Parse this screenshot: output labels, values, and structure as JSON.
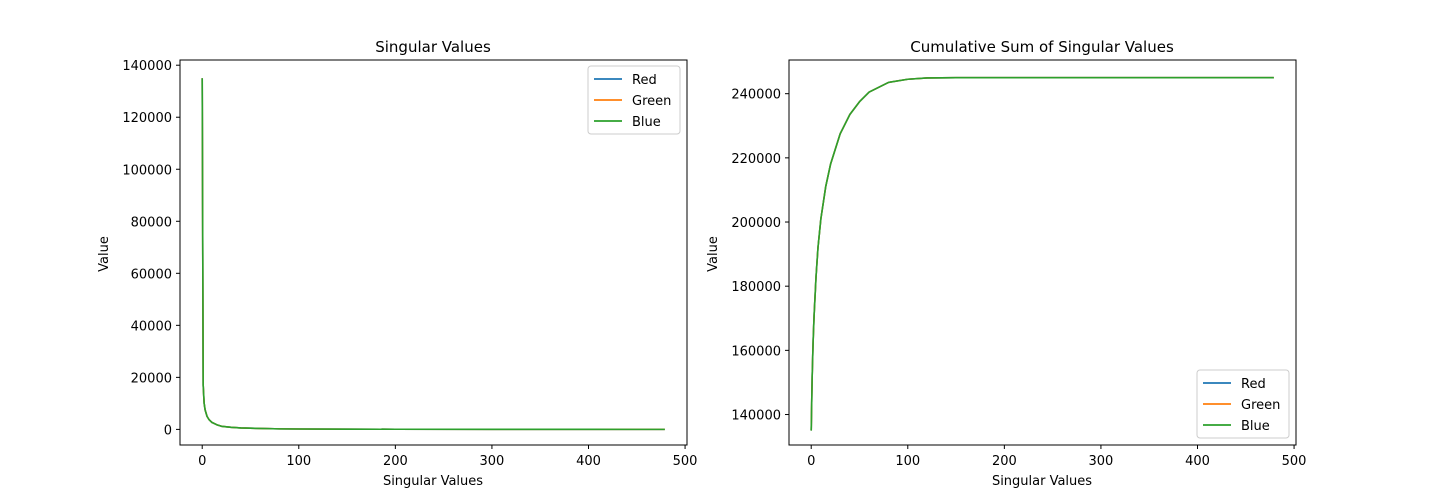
{
  "chart_data": [
    {
      "type": "line",
      "title": "Singular Values",
      "xlabel": "Singular Values",
      "ylabel": "Value",
      "xlim": [
        -23,
        502
      ],
      "ylim": [
        -6000,
        142000
      ],
      "xticks": [
        0,
        100,
        200,
        300,
        400,
        500
      ],
      "yticks": [
        0,
        20000,
        40000,
        60000,
        80000,
        100000,
        120000,
        140000
      ],
      "legend": {
        "placement": "upper-right",
        "entries": [
          "Red",
          "Green",
          "Blue"
        ]
      },
      "grid": false,
      "x": [
        0,
        1,
        2,
        3,
        5,
        7,
        10,
        15,
        20,
        30,
        40,
        60,
        80,
        100,
        150,
        200,
        300,
        400,
        479
      ],
      "series": [
        {
          "name": "Red",
          "color": "#1f77b4",
          "values": [
            135000,
            17000,
            10000,
            7500,
            5000,
            3800,
            2700,
            1800,
            1200,
            800,
            550,
            350,
            200,
            150,
            80,
            50,
            25,
            12,
            5
          ]
        },
        {
          "name": "Green",
          "color": "#ff7f0e",
          "values": [
            135000,
            17000,
            10000,
            7500,
            5000,
            3800,
            2700,
            1800,
            1200,
            800,
            550,
            350,
            200,
            150,
            80,
            50,
            25,
            12,
            5
          ]
        },
        {
          "name": "Blue",
          "color": "#2ca02c",
          "values": [
            135000,
            17000,
            10000,
            7500,
            5000,
            3800,
            2700,
            1800,
            1200,
            800,
            550,
            350,
            200,
            150,
            80,
            50,
            25,
            12,
            5
          ]
        }
      ]
    },
    {
      "type": "line",
      "title": "Cumulative Sum of Singular Values",
      "xlabel": "Singular Values",
      "ylabel": "Value",
      "xlim": [
        -23,
        502
      ],
      "ylim": [
        130500,
        250500
      ],
      "xticks": [
        0,
        100,
        200,
        300,
        400,
        500
      ],
      "yticks": [
        140000,
        160000,
        180000,
        200000,
        220000,
        240000
      ],
      "legend": {
        "placement": "lower-right",
        "entries": [
          "Red",
          "Green",
          "Blue"
        ]
      },
      "grid": false,
      "x": [
        0,
        1,
        2,
        3,
        5,
        7,
        10,
        15,
        20,
        30,
        40,
        50,
        60,
        80,
        100,
        120,
        150,
        200,
        300,
        400,
        479
      ],
      "series": [
        {
          "name": "Red",
          "color": "#1f77b4",
          "values": [
            135000,
            152000,
            163000,
            171000,
            183000,
            192000,
            201000,
            211000,
            218000,
            227500,
            233500,
            237500,
            240500,
            243500,
            244500,
            244900,
            245000,
            245000,
            245000,
            245000,
            245000
          ]
        },
        {
          "name": "Green",
          "color": "#ff7f0e",
          "values": [
            135000,
            152000,
            163000,
            171000,
            183000,
            192000,
            201000,
            211000,
            218000,
            227500,
            233500,
            237500,
            240500,
            243500,
            244500,
            244900,
            245000,
            245000,
            245000,
            245000,
            245000
          ]
        },
        {
          "name": "Blue",
          "color": "#2ca02c",
          "values": [
            135000,
            152000,
            163000,
            171000,
            183000,
            192000,
            201000,
            211000,
            218000,
            227500,
            233500,
            237500,
            240500,
            243500,
            244500,
            244900,
            245000,
            245000,
            245000,
            245000,
            245000
          ]
        }
      ]
    }
  ]
}
